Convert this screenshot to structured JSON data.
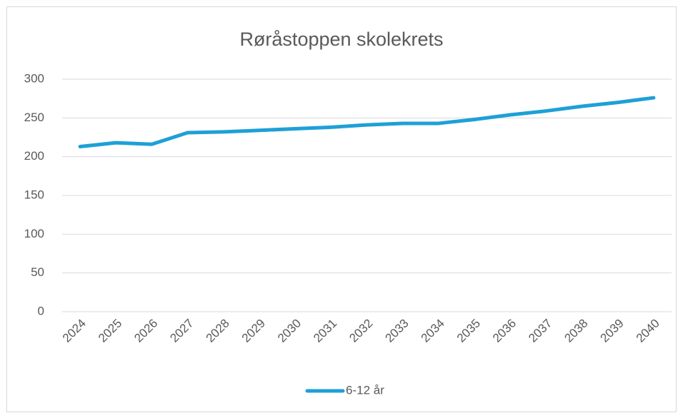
{
  "chart_data": {
    "type": "line",
    "title": "Røråstoppen skolekrets",
    "categories": [
      "2024",
      "2025",
      "2026",
      "2027",
      "2028",
      "2029",
      "2030",
      "2031",
      "2032",
      "2033",
      "2034",
      "2035",
      "2036",
      "2037",
      "2038",
      "2039",
      "2040"
    ],
    "series": [
      {
        "name": "6-12 år",
        "color": "#1ea0d6",
        "values": [
          213,
          218,
          216,
          231,
          232,
          234,
          236,
          238,
          241,
          243,
          243,
          248,
          254,
          259,
          265,
          270,
          276
        ]
      }
    ],
    "ylim": [
      0,
      300
    ],
    "yticks": [
      0,
      50,
      100,
      150,
      200,
      250,
      300
    ],
    "grid": true,
    "legend": "bottom"
  }
}
